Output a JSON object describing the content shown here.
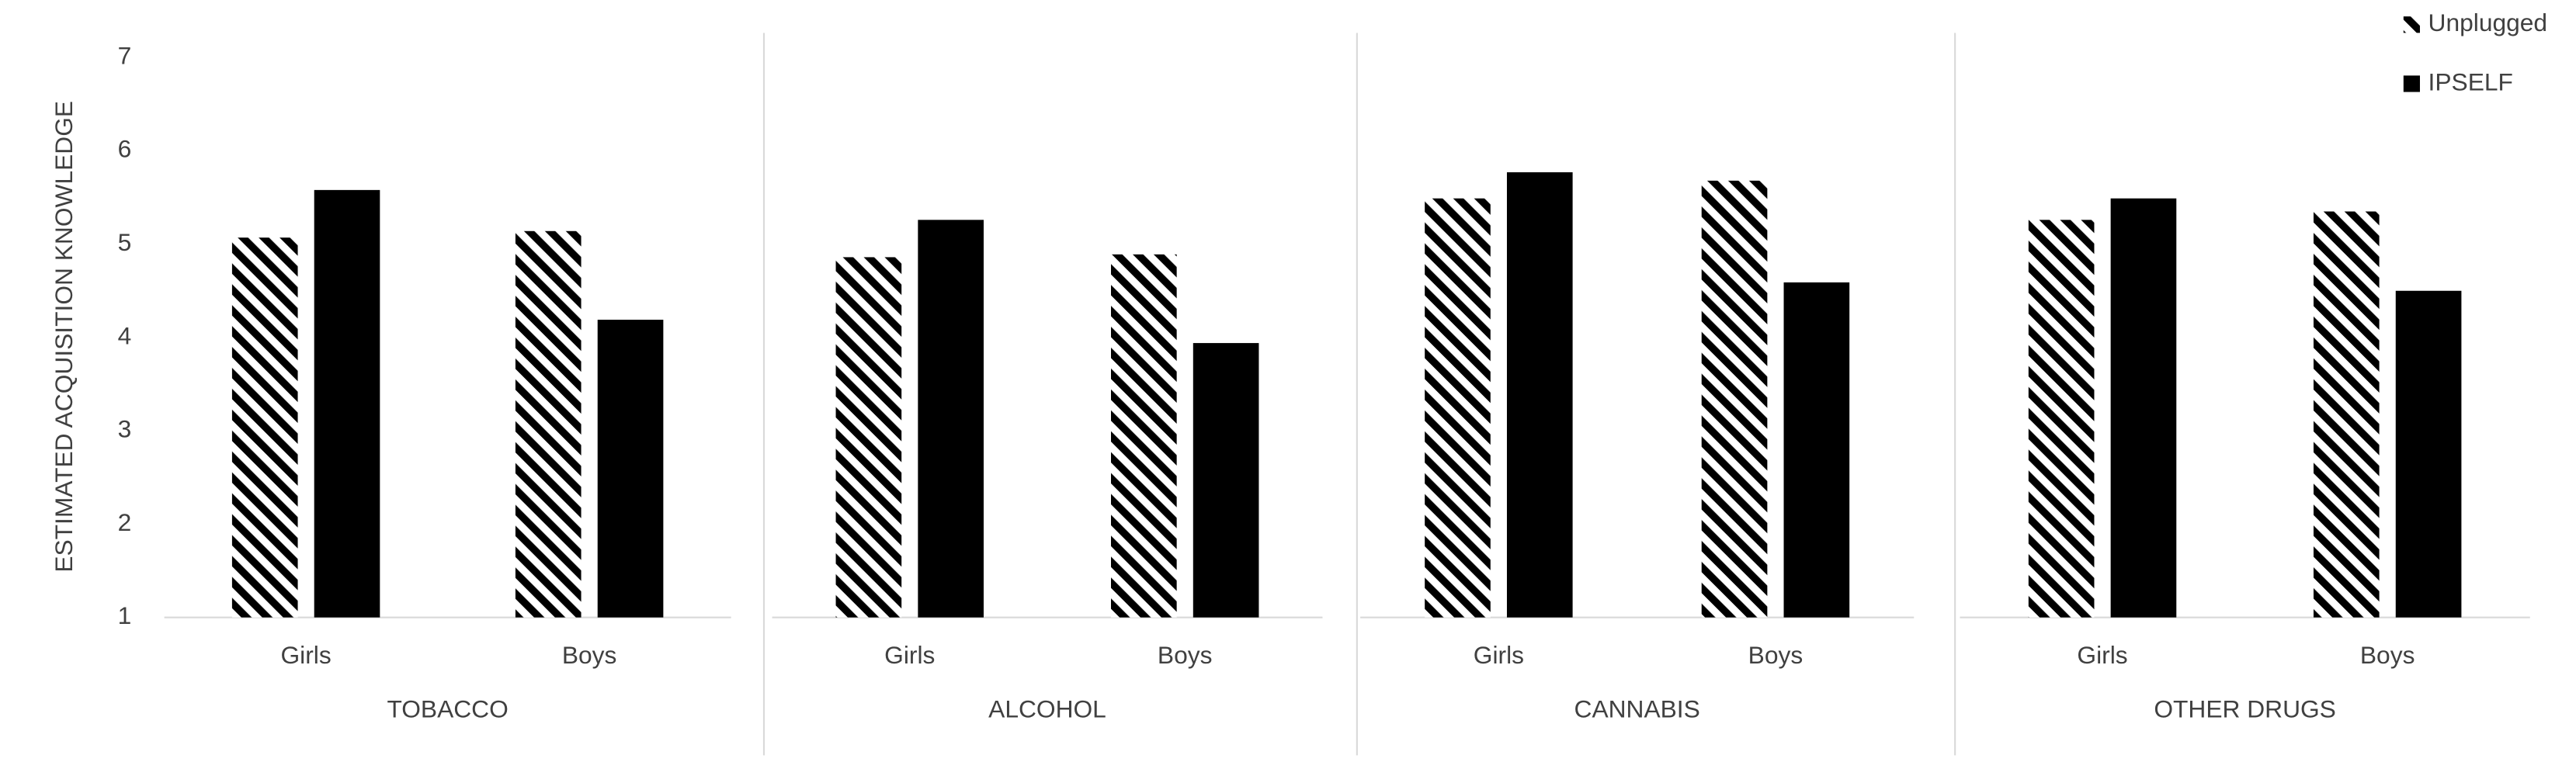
{
  "chart_data": {
    "type": "bar",
    "ylabel": "ESTIMATED  ACQUISITION KNOWLEDGE",
    "groups": [
      "TOBACCO",
      "ALCOHOL",
      "CANNABIS",
      "OTHER DRUGS"
    ],
    "categories": [
      "Girls",
      "Boys",
      "Girls",
      "Boys",
      "Girls",
      "Boys",
      "Girls",
      "Boys"
    ],
    "series": [
      {
        "name": "Unplugged",
        "color": "#000000",
        "hatch": true,
        "values": [
          5.07,
          5.14,
          4.86,
          4.89,
          5.49,
          5.68,
          5.26,
          5.35
        ]
      },
      {
        "name": "IPSELF",
        "color": "#000000",
        "hatch": false,
        "values": [
          5.58,
          4.19,
          5.26,
          3.94,
          5.77,
          4.59,
          5.49,
          4.5
        ]
      }
    ],
    "ylim": [
      1,
      7
    ],
    "yticks": [
      1,
      2,
      3,
      4,
      5,
      6,
      7
    ],
    "legend": "top-right"
  }
}
